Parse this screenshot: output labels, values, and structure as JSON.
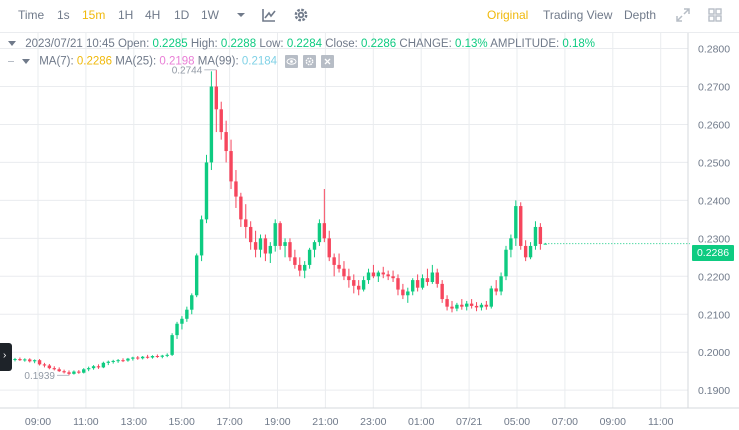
{
  "toolbar": {
    "intervals": [
      "Time",
      "1s",
      "15m",
      "1H",
      "4H",
      "1D",
      "1W"
    ],
    "active_interval": "15m",
    "views": [
      "Original",
      "Trading View",
      "Depth"
    ],
    "active_view": "Original",
    "icons": [
      "chevron-down-icon",
      "line-chart-icon",
      "settings-gear-icon",
      "fullscreen-icon",
      "grid-icon"
    ]
  },
  "legend": {
    "line1": {
      "datetime": "2023/07/21 10:45",
      "open_label": "Open:",
      "open": "0.2285",
      "high_label": "High:",
      "high": "0.2288",
      "low_label": "Low:",
      "low": "0.2284",
      "close_label": "Close:",
      "close": "0.2286",
      "change_label": "CHANGE:",
      "change": "0.13%",
      "amplitude_label": "AMPLITUDE:",
      "amplitude": "0.18%"
    },
    "line2": {
      "ma7_label": "MA(7):",
      "ma7": "0.2286",
      "ma25_label": "MA(25):",
      "ma25": "0.2198",
      "ma99_label": "MA(99):",
      "ma99": "0.2184"
    },
    "buttons": [
      "eye-icon",
      "settings-icon",
      "close-icon"
    ]
  },
  "colors": {
    "up": "#0ecb81",
    "down": "#f6465d",
    "ma7": "#f0b90b",
    "ma25": "#e97ed6",
    "ma99": "#7fd1e6",
    "accent": "#f0b90b",
    "grid": "#eaecef",
    "text": "#707a8a"
  },
  "price_label": "0.2286",
  "chart_data": {
    "type": "candlestick",
    "y_axis": {
      "ticks": [
        "0.2800",
        "0.2700",
        "0.2600",
        "0.2500",
        "0.2400",
        "0.2300",
        "0.2200",
        "0.2100",
        "0.2000",
        "0.1900"
      ],
      "range": [
        0.1853,
        0.2841
      ],
      "position": "right"
    },
    "x_axis": {
      "ticks": [
        "09:00",
        "11:00",
        "13:00",
        "15:00",
        "17:00",
        "19:00",
        "21:00",
        "23:00",
        "01:00",
        "07/21",
        "05:00",
        "07:00",
        "09:00",
        "11:00"
      ]
    },
    "annotations": {
      "high": "0.2744",
      "low": "0.1939"
    },
    "last_price": 0.2286,
    "candles_ohlc": [
      [
        0.198,
        0.1985,
        0.1976,
        0.1982
      ],
      [
        0.1982,
        0.1986,
        0.1977,
        0.1979
      ],
      [
        0.1979,
        0.1984,
        0.1975,
        0.1981
      ],
      [
        0.1981,
        0.1984,
        0.1973,
        0.1976
      ],
      [
        0.1976,
        0.1981,
        0.1971,
        0.1979
      ],
      [
        0.1979,
        0.1982,
        0.1965,
        0.1968
      ],
      [
        0.1968,
        0.1972,
        0.196,
        0.1965
      ],
      [
        0.1965,
        0.1969,
        0.1955,
        0.1958
      ],
      [
        0.1958,
        0.1963,
        0.1952,
        0.1955
      ],
      [
        0.1955,
        0.196,
        0.1948,
        0.195
      ],
      [
        0.195,
        0.1954,
        0.1944,
        0.1947
      ],
      [
        0.1947,
        0.1952,
        0.1939,
        0.1943
      ],
      [
        0.1943,
        0.1952,
        0.1941,
        0.1949
      ],
      [
        0.1949,
        0.1953,
        0.1943,
        0.1946
      ],
      [
        0.1946,
        0.1958,
        0.1944,
        0.1955
      ],
      [
        0.1955,
        0.1962,
        0.195,
        0.1958
      ],
      [
        0.1958,
        0.1966,
        0.1954,
        0.1963
      ],
      [
        0.1963,
        0.1968,
        0.1956,
        0.196
      ],
      [
        0.196,
        0.1975,
        0.1958,
        0.1972
      ],
      [
        0.1972,
        0.1978,
        0.1966,
        0.1975
      ],
      [
        0.1975,
        0.198,
        0.197,
        0.1977
      ],
      [
        0.1977,
        0.1982,
        0.1972,
        0.1979
      ],
      [
        0.1979,
        0.1984,
        0.1974,
        0.1978
      ],
      [
        0.1978,
        0.1985,
        0.1975,
        0.1983
      ],
      [
        0.1983,
        0.1988,
        0.1978,
        0.1986
      ],
      [
        0.1986,
        0.199,
        0.198,
        0.1984
      ],
      [
        0.1984,
        0.199,
        0.1981,
        0.1988
      ],
      [
        0.1988,
        0.1993,
        0.1983,
        0.1986
      ],
      [
        0.1986,
        0.1992,
        0.1983,
        0.199
      ],
      [
        0.199,
        0.1994,
        0.1985,
        0.1988
      ],
      [
        0.1988,
        0.1993,
        0.1984,
        0.1991
      ],
      [
        0.1991,
        0.1997,
        0.1987,
        0.1993
      ],
      [
        0.1993,
        0.205,
        0.199,
        0.2045
      ],
      [
        0.2045,
        0.208,
        0.2035,
        0.2075
      ],
      [
        0.2075,
        0.2095,
        0.206,
        0.2088
      ],
      [
        0.2088,
        0.212,
        0.208,
        0.2112
      ],
      [
        0.2112,
        0.2155,
        0.21,
        0.215
      ],
      [
        0.215,
        0.226,
        0.2145,
        0.2255
      ],
      [
        0.2255,
        0.236,
        0.224,
        0.235
      ],
      [
        0.235,
        0.252,
        0.234,
        0.25
      ],
      [
        0.25,
        0.274,
        0.248,
        0.27
      ],
      [
        0.27,
        0.2744,
        0.258,
        0.264
      ],
      [
        0.264,
        0.266,
        0.256,
        0.258
      ],
      [
        0.258,
        0.261,
        0.25,
        0.253
      ],
      [
        0.253,
        0.256,
        0.243,
        0.245
      ],
      [
        0.245,
        0.248,
        0.238,
        0.241
      ],
      [
        0.241,
        0.242,
        0.233,
        0.235
      ],
      [
        0.235,
        0.239,
        0.23,
        0.233
      ],
      [
        0.233,
        0.2345,
        0.227,
        0.229
      ],
      [
        0.229,
        0.232,
        0.225,
        0.227
      ],
      [
        0.227,
        0.231,
        0.225,
        0.23
      ],
      [
        0.23,
        0.231,
        0.224,
        0.226
      ],
      [
        0.226,
        0.229,
        0.2235,
        0.228
      ],
      [
        0.228,
        0.235,
        0.2265,
        0.234
      ],
      [
        0.234,
        0.2345,
        0.227,
        0.228
      ],
      [
        0.228,
        0.23,
        0.225,
        0.229
      ],
      [
        0.229,
        0.23,
        0.224,
        0.225
      ],
      [
        0.225,
        0.227,
        0.222,
        0.223
      ],
      [
        0.223,
        0.225,
        0.22,
        0.2215
      ],
      [
        0.2215,
        0.224,
        0.2195,
        0.223
      ],
      [
        0.223,
        0.2275,
        0.222,
        0.227
      ],
      [
        0.227,
        0.2295,
        0.225,
        0.229
      ],
      [
        0.229,
        0.235,
        0.228,
        0.234
      ],
      [
        0.234,
        0.243,
        0.229,
        0.23
      ],
      [
        0.23,
        0.232,
        0.224,
        0.225
      ],
      [
        0.225,
        0.226,
        0.22,
        0.223
      ],
      [
        0.223,
        0.226,
        0.221,
        0.222
      ],
      [
        0.222,
        0.224,
        0.219,
        0.22
      ],
      [
        0.22,
        0.222,
        0.217,
        0.219
      ],
      [
        0.219,
        0.2205,
        0.2155,
        0.2175
      ],
      [
        0.2175,
        0.219,
        0.215,
        0.2165
      ],
      [
        0.2165,
        0.22,
        0.216,
        0.219
      ],
      [
        0.219,
        0.222,
        0.218,
        0.221
      ],
      [
        0.221,
        0.223,
        0.2195,
        0.22
      ],
      [
        0.22,
        0.2215,
        0.2185,
        0.221
      ],
      [
        0.221,
        0.2225,
        0.2195,
        0.2205
      ],
      [
        0.2205,
        0.2215,
        0.219,
        0.22
      ],
      [
        0.22,
        0.2215,
        0.2185,
        0.2195
      ],
      [
        0.2195,
        0.2205,
        0.215,
        0.2165
      ],
      [
        0.2165,
        0.218,
        0.214,
        0.215
      ],
      [
        0.215,
        0.217,
        0.213,
        0.216
      ],
      [
        0.216,
        0.2195,
        0.215,
        0.219
      ],
      [
        0.219,
        0.2205,
        0.216,
        0.217
      ],
      [
        0.217,
        0.2205,
        0.2165,
        0.2195
      ],
      [
        0.2195,
        0.222,
        0.2175,
        0.2185
      ],
      [
        0.2185,
        0.223,
        0.218,
        0.221
      ],
      [
        0.221,
        0.222,
        0.217,
        0.218
      ],
      [
        0.218,
        0.219,
        0.213,
        0.214
      ],
      [
        0.214,
        0.215,
        0.211,
        0.212
      ],
      [
        0.212,
        0.2135,
        0.2105,
        0.2115
      ],
      [
        0.2115,
        0.213,
        0.2108,
        0.2125
      ],
      [
        0.2125,
        0.214,
        0.2112,
        0.212
      ],
      [
        0.212,
        0.2135,
        0.211,
        0.2128
      ],
      [
        0.2128,
        0.214,
        0.2115,
        0.2122
      ],
      [
        0.2122,
        0.2132,
        0.2108,
        0.2118
      ],
      [
        0.2118,
        0.213,
        0.211,
        0.2125
      ],
      [
        0.2125,
        0.2135,
        0.2112,
        0.212
      ],
      [
        0.212,
        0.2175,
        0.2115,
        0.2168
      ],
      [
        0.2168,
        0.219,
        0.215,
        0.216
      ],
      [
        0.216,
        0.221,
        0.215,
        0.22
      ],
      [
        0.22,
        0.228,
        0.219,
        0.227
      ],
      [
        0.227,
        0.231,
        0.225,
        0.23
      ],
      [
        0.23,
        0.24,
        0.228,
        0.2385
      ],
      [
        0.2385,
        0.2395,
        0.227,
        0.228
      ],
      [
        0.228,
        0.2295,
        0.224,
        0.225
      ],
      [
        0.225,
        0.229,
        0.2245,
        0.228
      ],
      [
        0.228,
        0.2345,
        0.227,
        0.233
      ],
      [
        0.233,
        0.234,
        0.227,
        0.2285
      ],
      [
        0.2285,
        0.2288,
        0.2284,
        0.2286
      ]
    ]
  }
}
